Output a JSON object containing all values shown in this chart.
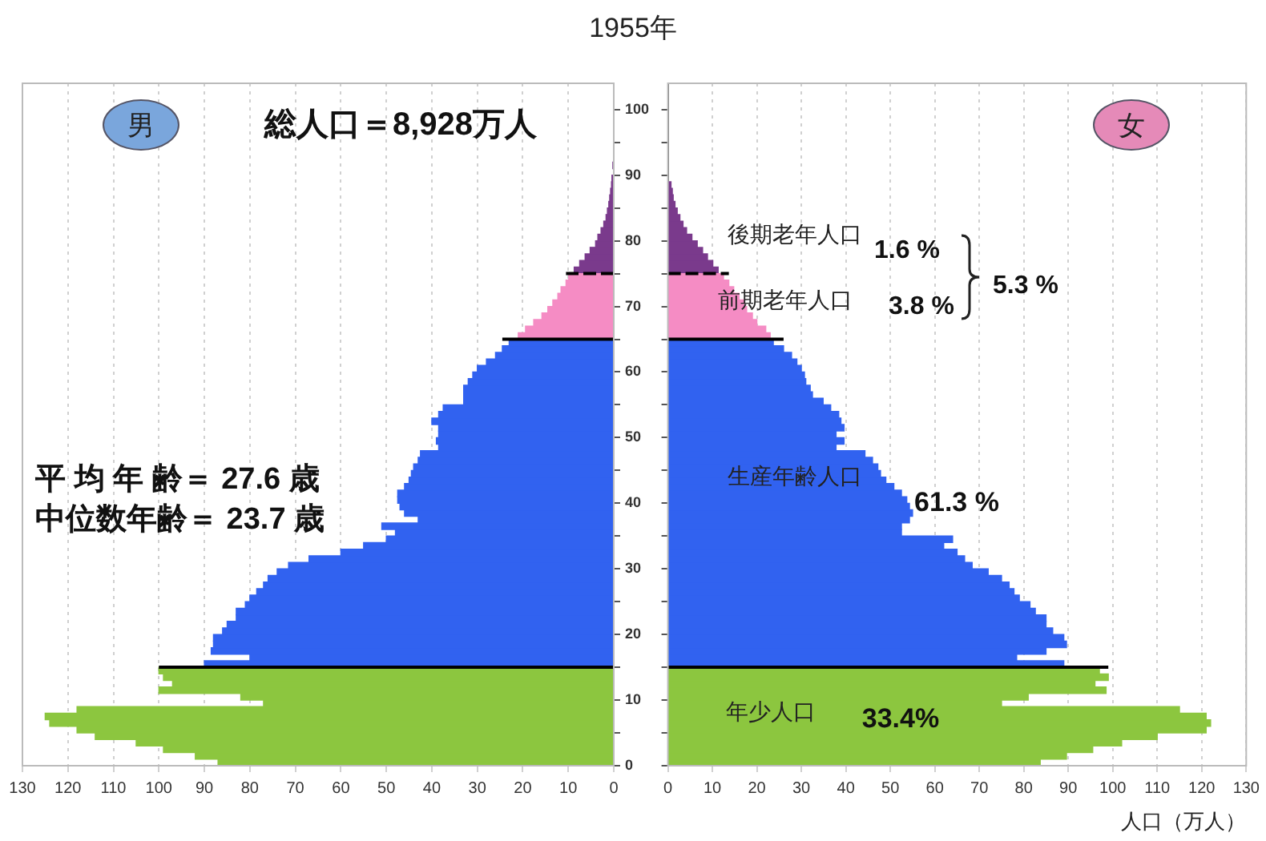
{
  "chart_data": [
    {
      "type": "bar",
      "orientation": "horizontal",
      "title": "1955年",
      "xlim": [
        130,
        0
      ],
      "xticks": [
        130,
        120,
        110,
        100,
        90,
        80,
        70,
        60,
        50,
        40,
        30,
        20,
        10,
        0
      ],
      "ylim": [
        0,
        104
      ],
      "yticks": [
        0,
        {
          "value": 5,
          "label": null
        },
        10,
        {
          "value": 15,
          "label": null
        },
        20,
        {
          "value": 25,
          "label": null
        },
        30,
        {
          "value": 35,
          "label": null
        },
        40,
        {
          "value": 45,
          "label": null
        },
        50,
        {
          "value": 55,
          "label": null
        },
        60,
        {
          "value": 65,
          "label": null
        },
        70,
        {
          "value": 75,
          "label": null
        },
        80,
        {
          "value": 85,
          "label": null
        },
        90,
        {
          "value": 95,
          "label": null
        },
        100
      ],
      "grid": "x",
      "annotations": [
        "男",
        "総人口＝8,928万人",
        "平 均 年 齢＝ 27.6 歳",
        "中位数年齢＝ 23.7 歳"
      ],
      "ref_lines": [
        {
          "axis": "y",
          "value": 15,
          "color": "#000000",
          "line_style": "solid"
        },
        {
          "axis": "y",
          "value": 65,
          "color": "#000000",
          "line_style": "solid"
        },
        {
          "axis": "y",
          "value": 75,
          "color": "#000000",
          "line_style": "dashed"
        }
      ],
      "series": [
        {
          "color": "#8cc63f",
          "x": [
            0.5,
            1.5,
            2.5,
            3.5,
            4.5,
            5.5,
            6.5,
            7.5,
            8.5,
            9.5,
            10.5,
            11.5,
            12.5,
            13.5,
            14.5
          ],
          "values": [
            87,
            92,
            99,
            105,
            114,
            118,
            124,
            125,
            118,
            77,
            82,
            100,
            97,
            99,
            100
          ]
        },
        {
          "color": "#3162f0",
          "x": [
            15.5,
            16.5,
            17.5,
            18.5,
            19.5,
            20.5,
            21.5,
            22.5,
            23.5,
            24.5,
            25.5,
            26.5,
            27.5,
            28.5,
            29.5,
            30.5,
            31.5,
            32.5,
            33.5,
            34.5,
            35.5,
            36.5,
            37.5,
            38.5,
            39.5,
            40.5,
            41.5,
            42.5,
            43.5,
            44.5,
            45.5,
            46.5,
            47.5,
            48.5,
            49.5,
            50.5,
            51.5,
            52.5,
            53.5,
            54.5,
            55.5,
            56.5,
            57.5,
            58.5,
            59.5,
            60.5,
            61.5,
            62.5,
            63.5,
            64.5
          ],
          "values": [
            90,
            80,
            88.5,
            88,
            88,
            86,
            85,
            83,
            83,
            81,
            80,
            78.5,
            77,
            76,
            74,
            71.5,
            67,
            60,
            55,
            50,
            48,
            51,
            43,
            46,
            47,
            47.5,
            47.5,
            46,
            45,
            44.5,
            44,
            43,
            42.5,
            38.5,
            39,
            38.5,
            38.5,
            40,
            38.5,
            37.5,
            33,
            33,
            33,
            32,
            31,
            30,
            28,
            26,
            24.5,
            23
          ]
        },
        {
          "color": "#f58cc4",
          "x": [
            65.5,
            66.5,
            67.5,
            68.5,
            69.5,
            70.5,
            71.5,
            72.5,
            73.5,
            74.5
          ],
          "values": [
            21,
            19.4,
            17.6,
            15.8,
            14.5,
            13.4,
            12.3,
            11.6,
            10.5,
            9.9
          ]
        },
        {
          "color": "#7a3a8c",
          "x": [
            75.5,
            76.5,
            77.5,
            78.5,
            79.5,
            80.5,
            81.5,
            82.5,
            83.5,
            84.5,
            85.5,
            86.5,
            87.5,
            88.5,
            89.5,
            90.5,
            91.5
          ],
          "values": [
            8.7,
            7.5,
            6.3,
            5.2,
            4,
            3.5,
            2.8,
            2.2,
            1.7,
            1.4,
            1.1,
            0.9,
            0.7,
            0.5,
            0.4,
            null,
            0.2
          ]
        }
      ]
    },
    {
      "type": "bar",
      "orientation": "horizontal",
      "xlabel": "人口（万人）",
      "xlim": [
        0,
        130
      ],
      "xticks": [
        0,
        10,
        20,
        30,
        40,
        50,
        60,
        70,
        80,
        90,
        100,
        110,
        120,
        130
      ],
      "ylim": [
        0,
        104
      ],
      "yticks": [
        0,
        {
          "value": 5,
          "label": null
        },
        10,
        {
          "value": 15,
          "label": null
        },
        20,
        {
          "value": 25,
          "label": null
        },
        30,
        {
          "value": 35,
          "label": null
        },
        40,
        {
          "value": 45,
          "label": null
        },
        50,
        {
          "value": 55,
          "label": null
        },
        60,
        {
          "value": 65,
          "label": null
        },
        70,
        {
          "value": 75,
          "label": null
        },
        80,
        {
          "value": 85,
          "label": null
        },
        90,
        {
          "value": 95,
          "label": null
        },
        100
      ],
      "grid": "x",
      "tick_labels": "x",
      "annotations": [
        "女",
        "1.6 %",
        "3.8 %",
        "5.3 %",
        "61.3 %",
        "33.4%"
      ],
      "ref_lines": [
        {
          "axis": "y",
          "value": 15,
          "color": "#000000",
          "line_style": "solid"
        },
        {
          "axis": "y",
          "value": 65,
          "color": "#000000",
          "line_style": "solid"
        },
        {
          "axis": "y",
          "value": 75,
          "color": "#000000",
          "line_style": "dashed"
        }
      ],
      "series": [
        {
          "name": "年少人口",
          "color": "#8cc63f",
          "x": [
            0.5,
            1.5,
            2.5,
            3.5,
            4.5,
            5.5,
            6.5,
            7.5,
            8.5,
            9.5,
            10.5,
            11.5,
            12.5,
            13.5,
            14.5
          ],
          "values": [
            83.7,
            89.6,
            95.5,
            102,
            110,
            121,
            122,
            121,
            115,
            75,
            81,
            98.5,
            96,
            99,
            97
          ]
        },
        {
          "name": "生産年齢人口",
          "color": "#3162f0",
          "x": [
            15.5,
            16.5,
            17.5,
            18.5,
            19.5,
            20.5,
            21.5,
            22.5,
            23.5,
            24.5,
            25.5,
            26.5,
            27.5,
            28.5,
            29.5,
            30.5,
            31.5,
            32.5,
            33.5,
            34.5,
            35.5,
            36.5,
            37.5,
            38.5,
            39.5,
            40.5,
            41.5,
            42.5,
            43.5,
            44.5,
            45.5,
            46.5,
            47.5,
            48.5,
            49.5,
            50.5,
            51.5,
            52.5,
            53.5,
            54.5,
            55.5,
            56.5,
            57.5,
            58.5,
            59.5,
            60.5,
            61.5,
            62.5,
            63.5,
            64.5
          ],
          "values": [
            89,
            78.4,
            85,
            89.6,
            89,
            86.5,
            85,
            85,
            82.6,
            81.4,
            79,
            77.8,
            76.7,
            75,
            72,
            68.4,
            66.7,
            65,
            62,
            64,
            52.5,
            52.5,
            54.3,
            55,
            54.3,
            53.7,
            52.5,
            50.8,
            49,
            47.8,
            47.2,
            46,
            44.3,
            37.8,
            39.6,
            37.8,
            39.6,
            38.9,
            38.4,
            36.6,
            34.9,
            32.5,
            32,
            31,
            30.7,
            30,
            29,
            27.8,
            26,
            23.7
          ]
        },
        {
          "name": "前期老年人口",
          "color": "#f58cc4",
          "x": [
            65.5,
            66.5,
            67.5,
            68.5,
            69.5,
            70.5,
            71.5,
            72.5,
            73.5,
            74.5
          ],
          "values": [
            23,
            22,
            20,
            19,
            17.7,
            17.2,
            16,
            14.8,
            13.7,
            12.5
          ]
        },
        {
          "name": "後期老年人口",
          "color": "#7a3a8c",
          "x": [
            75.5,
            76.5,
            77.5,
            78.5,
            79.5,
            80.5,
            81.5,
            82.5,
            83.5,
            84.5,
            85.5,
            86.5,
            87.5,
            88.5
          ],
          "values": [
            11.3,
            10.1,
            8.9,
            7.8,
            6.6,
            5.4,
            4.2,
            3.4,
            2.7,
            2.1,
            1.6,
            1.2,
            1,
            0.7
          ]
        }
      ]
    }
  ]
}
